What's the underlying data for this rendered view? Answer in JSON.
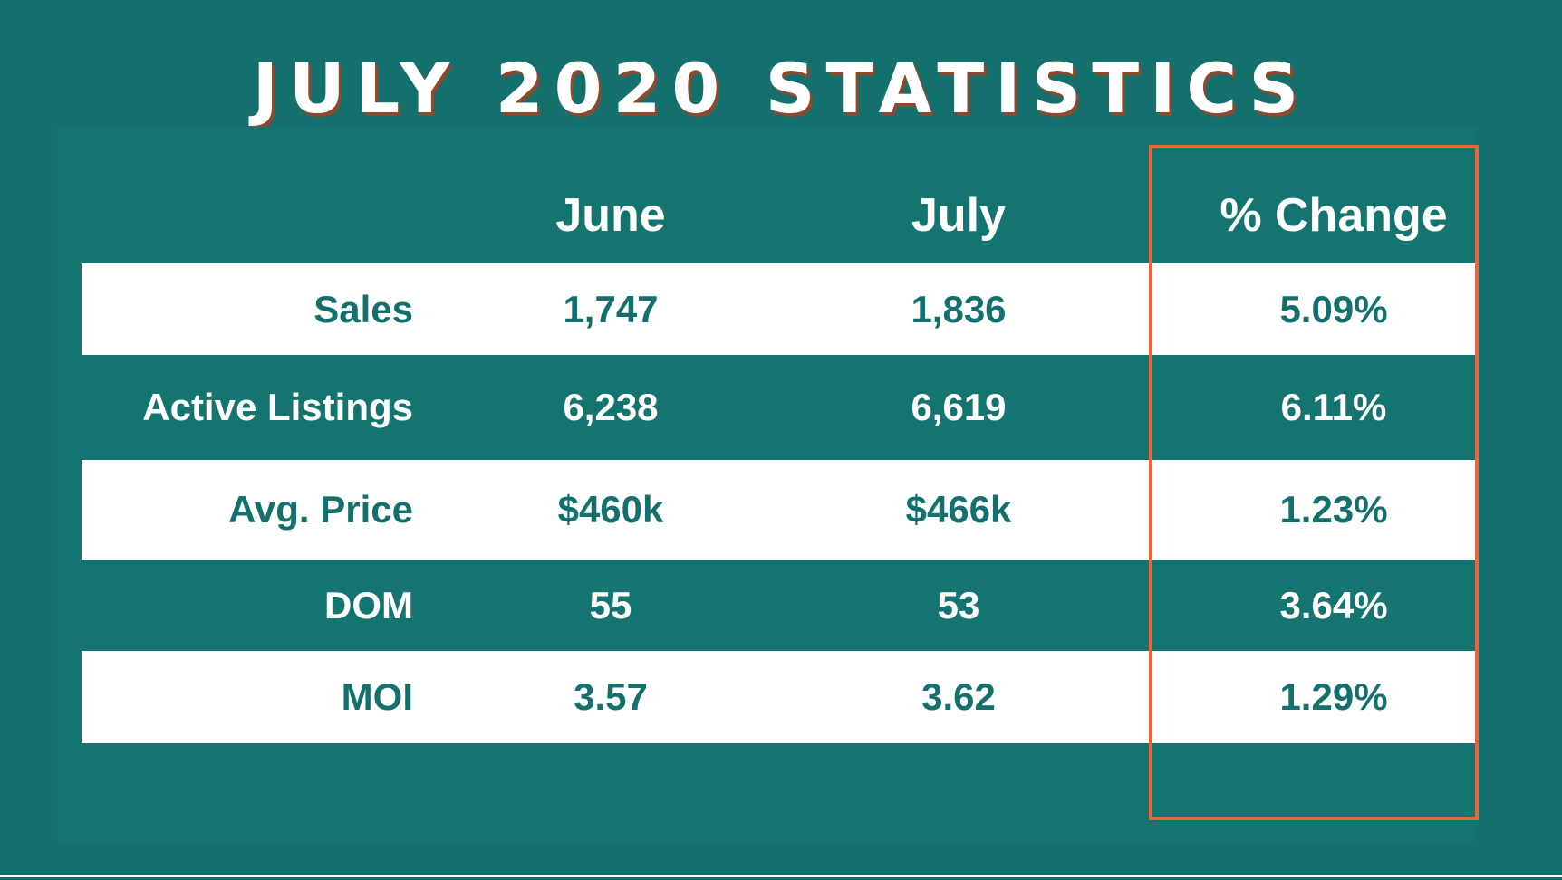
{
  "title": "JULY 2020 STATISTICS",
  "chart_data": {
    "type": "table",
    "columns": [
      "",
      "June",
      "July",
      "% Change"
    ],
    "rows": [
      {
        "label": "Sales",
        "june": "1,747",
        "july": "1,836",
        "change": "5.09%"
      },
      {
        "label": "Active Listings",
        "june": "6,238",
        "july": "6,619",
        "change": "6.11%"
      },
      {
        "label": "Avg. Price",
        "june": "$460k",
        "july": "$466k",
        "change": "1.23%"
      },
      {
        "label": "DOM",
        "june": "55",
        "july": "53",
        "change": "3.64%"
      },
      {
        "label": "MOI",
        "june": "3.57",
        "july": "3.62",
        "change": "1.29%"
      }
    ]
  },
  "colors": {
    "background": "#13706d",
    "light_row": "#ffffff",
    "highlight_border": "#e8663a",
    "title_shadow": "#8a4a2e"
  }
}
